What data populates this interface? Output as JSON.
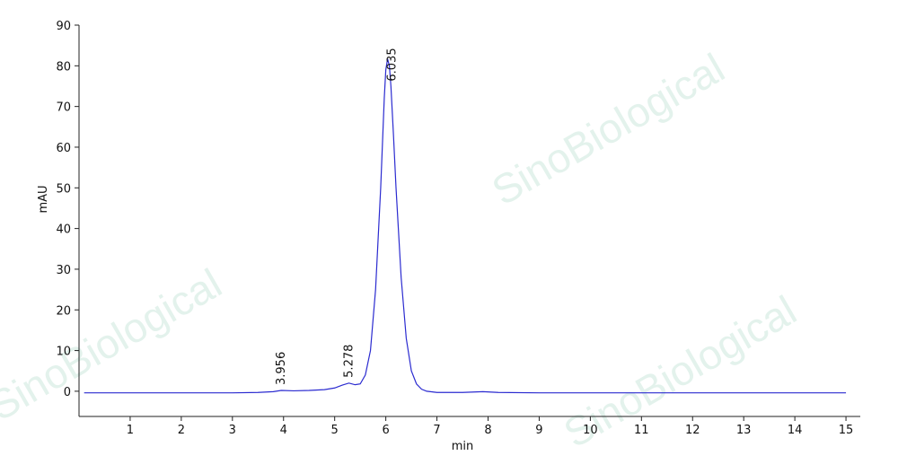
{
  "chart_data": {
    "type": "line",
    "x_label": "min",
    "y_label": "mAU",
    "watermark": "SinoBiological",
    "xlim": [
      0,
      15.28
    ],
    "ylim": [
      -6.2,
      90
    ],
    "xticks": [
      1,
      2,
      3,
      4,
      5,
      6,
      7,
      8,
      9,
      10,
      11,
      12,
      13,
      14,
      15
    ],
    "yticks": [
      0,
      10,
      20,
      30,
      40,
      50,
      60,
      70,
      80,
      90
    ],
    "x": [
      0.1,
      0.5,
      1,
      2,
      3,
      3.5,
      3.8,
      3.956,
      4.2,
      4.5,
      4.8,
      5.0,
      5.15,
      5.278,
      5.4,
      5.5,
      5.6,
      5.7,
      5.8,
      5.9,
      5.97,
      6.0,
      6.035,
      6.07,
      6.1,
      6.15,
      6.2,
      6.3,
      6.4,
      6.5,
      6.6,
      6.7,
      6.8,
      7.0,
      7.5,
      7.9,
      8.2,
      9,
      15
    ],
    "series": [
      {
        "color": "#2b2bd0",
        "values": [
          -0.4,
          -0.4,
          -0.4,
          -0.4,
          -0.4,
          -0.3,
          -0.1,
          0.2,
          0.1,
          0.2,
          0.4,
          0.8,
          1.5,
          2.0,
          1.6,
          1.8,
          4,
          10,
          25,
          50,
          72,
          79,
          81.7,
          80,
          75,
          63,
          50,
          28,
          13,
          5,
          1.8,
          0.5,
          0,
          -0.3,
          -0.3,
          -0.1,
          -0.3,
          -0.4,
          -0.4
        ]
      }
    ],
    "peaks": [
      {
        "x": 3.956,
        "y": 0.2
      },
      {
        "x": 5.278,
        "y": 2.0
      },
      {
        "x": 6.035,
        "y": 81.7
      }
    ]
  }
}
